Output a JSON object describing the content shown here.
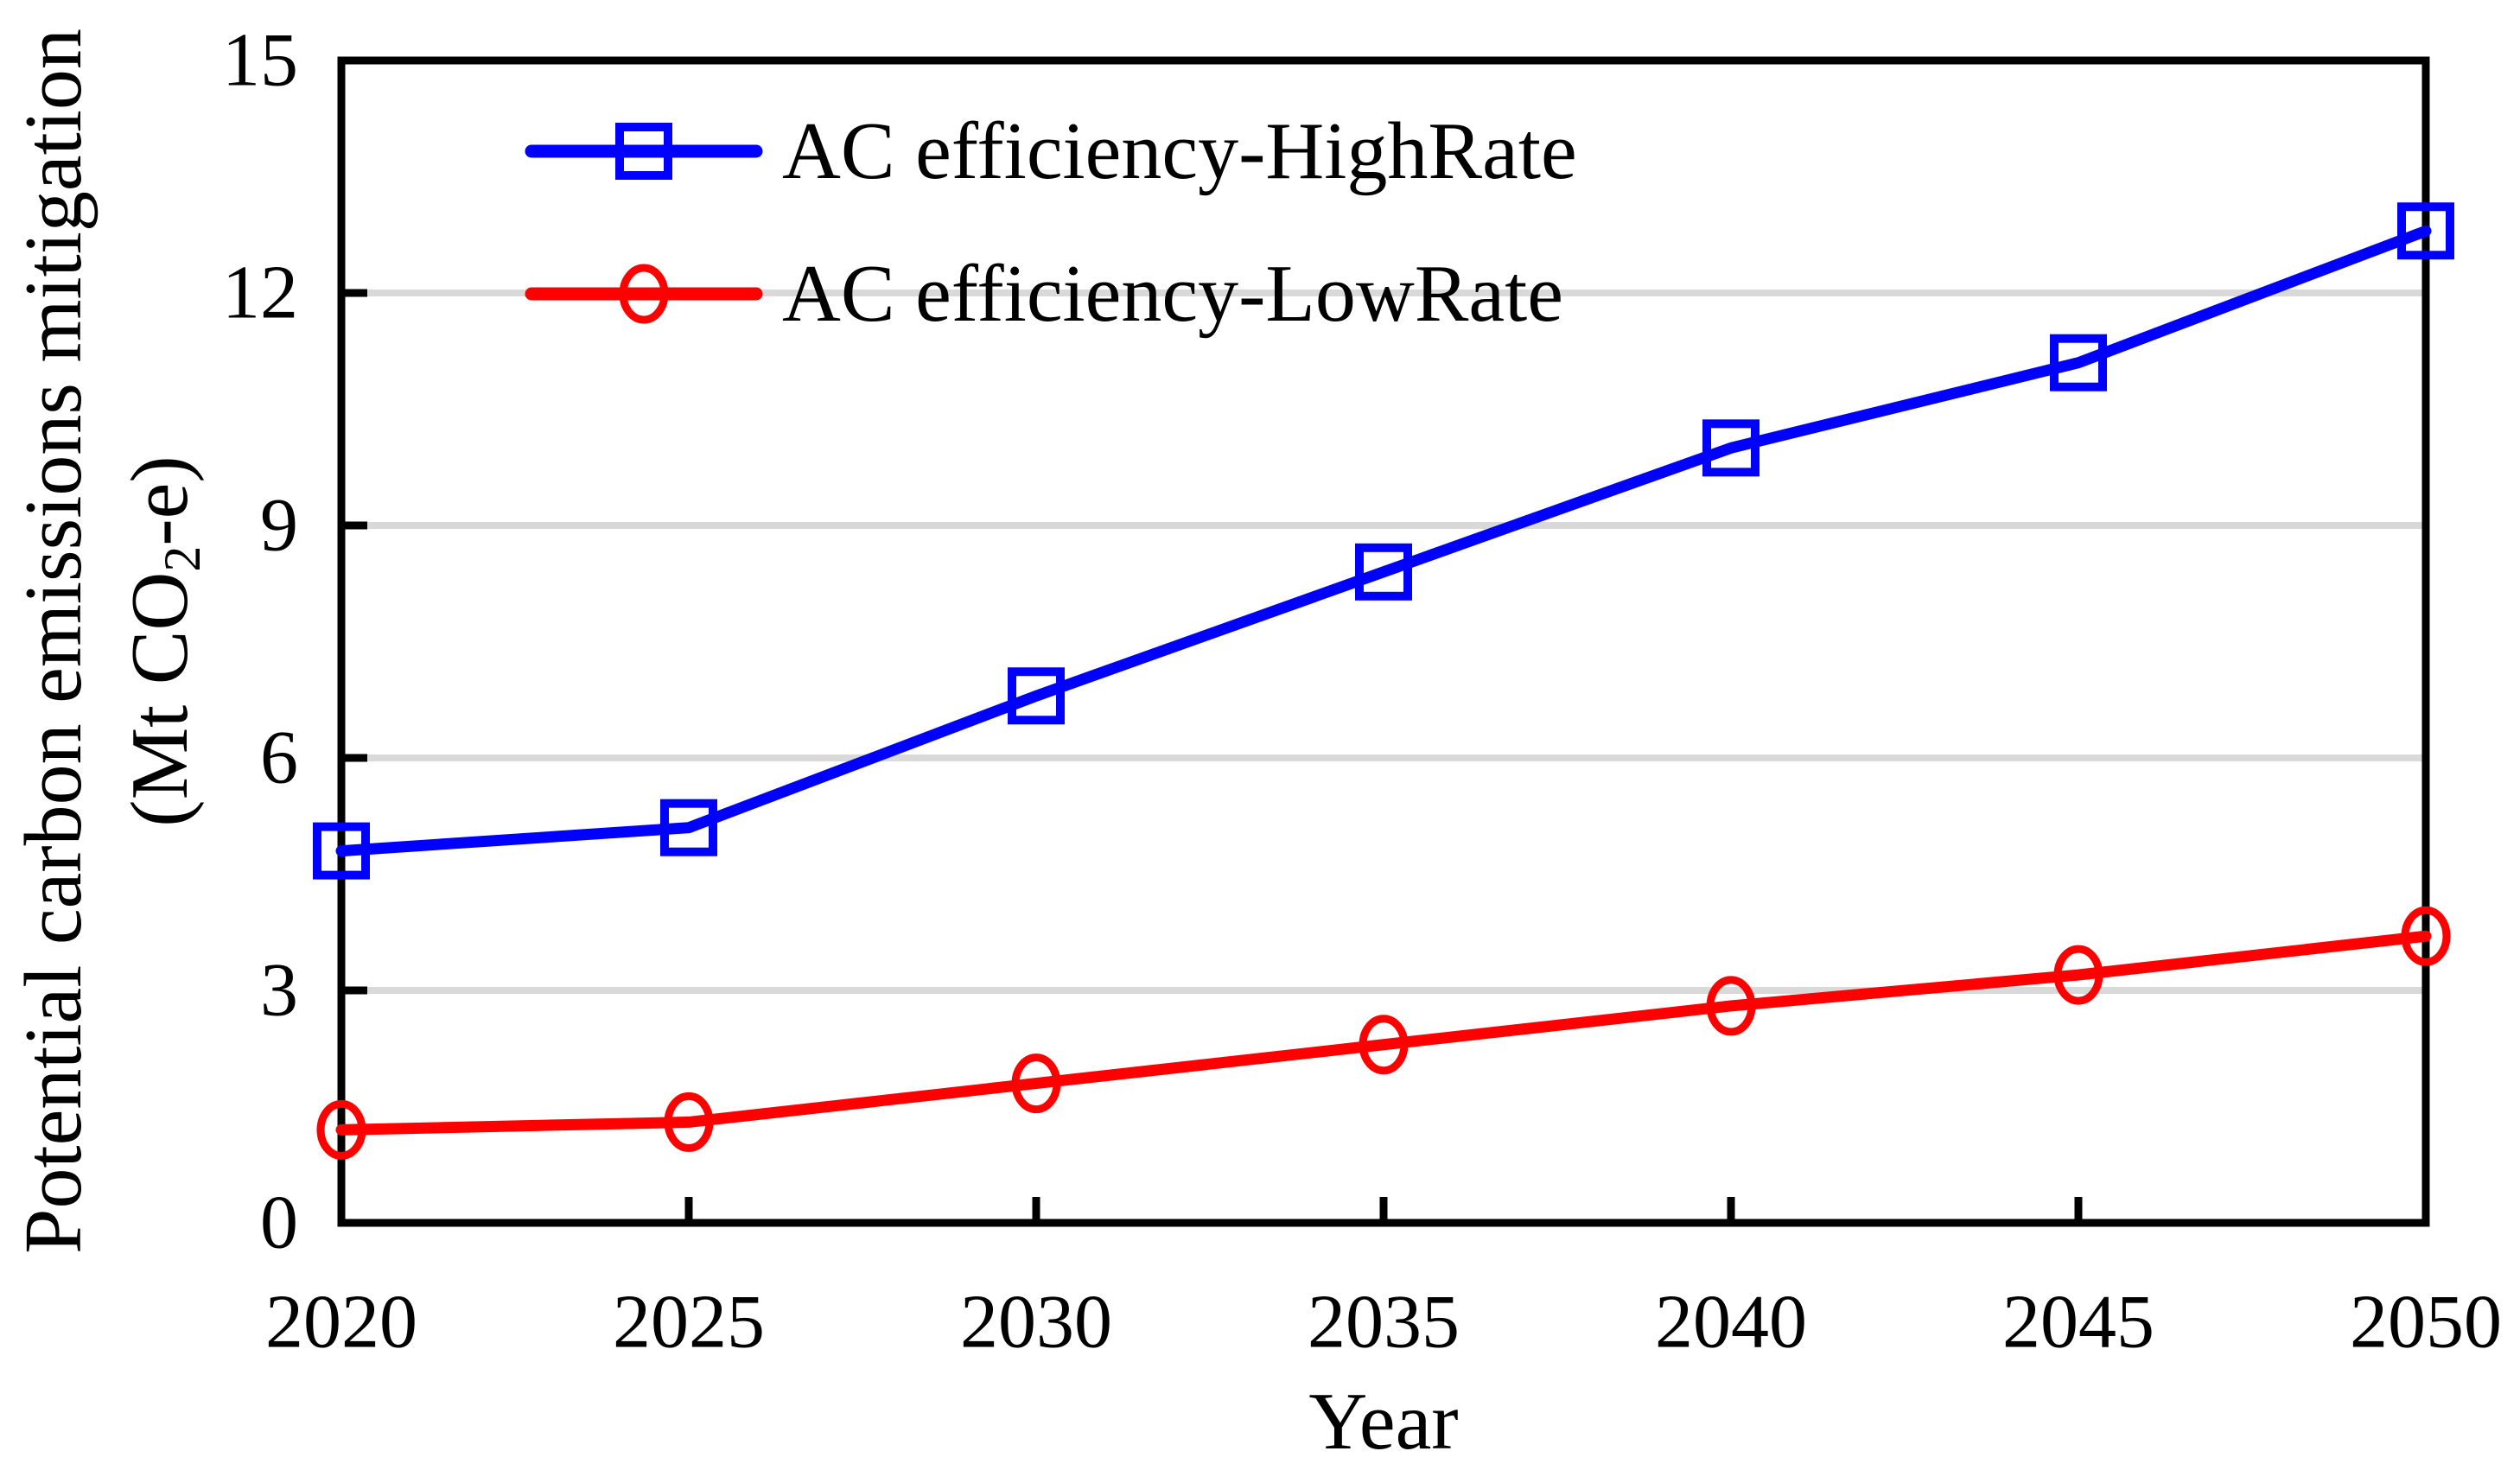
{
  "figure": {
    "background": "#ffffff",
    "frame_color": "#000000",
    "grid_color": "#d9d9d9"
  },
  "chart_data": {
    "type": "line",
    "title": "",
    "xlabel": "Year",
    "ylabel": "Potential carbon emissions mitigation (Mt CO2-e)",
    "ylabel_line1": "Potential carbon emissions mitigation",
    "ylabel_line2": {
      "pre": "(Mt CO",
      "sub": "2",
      "post": "-e)"
    },
    "x": [
      2020,
      2025,
      2030,
      2035,
      2040,
      2045,
      2050
    ],
    "x_tick_labels": [
      "2020",
      "2025",
      "2030",
      "2035",
      "2040",
      "2045",
      "2050"
    ],
    "y_ticks": [
      0,
      3,
      6,
      9,
      12,
      15
    ],
    "ylim": [
      0,
      15
    ],
    "xlim": [
      2020,
      2050
    ],
    "grid_y": [
      3,
      6,
      9,
      12
    ],
    "grid": "horizontal-only",
    "legend_position": "top-left-inside",
    "series": [
      {
        "name": "AC efficiency-HighRate",
        "color": "#0000ff",
        "marker": "square",
        "values": [
          4.8,
          5.1,
          6.8,
          8.4,
          10.0,
          11.1,
          12.8
        ]
      },
      {
        "name": "AC efficiency-LowRate",
        "color": "#ff0000",
        "marker": "circle",
        "values": [
          1.2,
          1.3,
          1.8,
          2.3,
          2.8,
          3.2,
          3.7
        ]
      }
    ]
  }
}
